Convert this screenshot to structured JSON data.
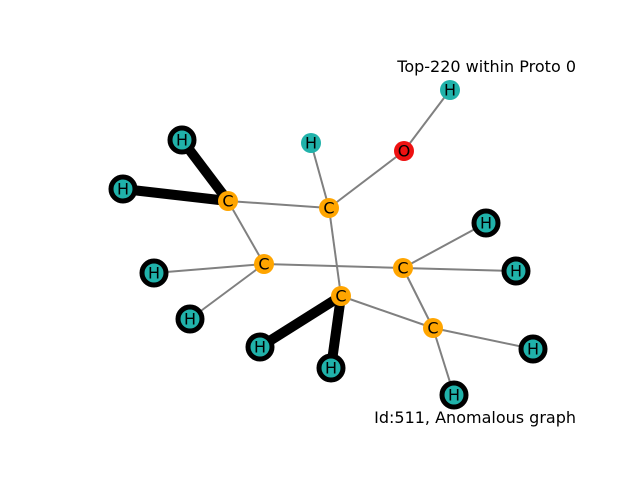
{
  "captions": {
    "top": "Top-220 within Proto 0",
    "bottom": "Id:511, Anomalous graph"
  },
  "colors": {
    "carbon": "#ffa500",
    "hydrogen": "#20b2aa",
    "oxygen": "#ee1111",
    "edge": "#808080",
    "highlight": "#000000"
  },
  "nodes": [
    {
      "id": "c1",
      "label": "C",
      "element": "carbon"
    },
    {
      "id": "c2",
      "label": "C",
      "element": "carbon"
    },
    {
      "id": "c3",
      "label": "C",
      "element": "carbon"
    },
    {
      "id": "c4",
      "label": "C",
      "element": "carbon"
    },
    {
      "id": "c5",
      "label": "C",
      "element": "carbon"
    },
    {
      "id": "c6",
      "label": "C",
      "element": "carbon"
    },
    {
      "id": "o1",
      "label": "O",
      "element": "oxygen"
    },
    {
      "id": "h1",
      "label": "H",
      "element": "hydrogen"
    },
    {
      "id": "h2",
      "label": "H",
      "element": "hydrogen"
    },
    {
      "id": "h3",
      "label": "H",
      "element": "hydrogen",
      "highlighted": true
    },
    {
      "id": "h4",
      "label": "H",
      "element": "hydrogen",
      "highlighted": true
    },
    {
      "id": "h5",
      "label": "H",
      "element": "hydrogen",
      "highlighted": true
    },
    {
      "id": "h6",
      "label": "H",
      "element": "hydrogen",
      "highlighted": true
    },
    {
      "id": "h7",
      "label": "H",
      "element": "hydrogen",
      "highlighted": true
    },
    {
      "id": "h8",
      "label": "H",
      "element": "hydrogen",
      "highlighted": true
    },
    {
      "id": "h9",
      "label": "H",
      "element": "hydrogen",
      "highlighted": true
    },
    {
      "id": "h10",
      "label": "H",
      "element": "hydrogen",
      "highlighted": true
    },
    {
      "id": "h11",
      "label": "H",
      "element": "hydrogen",
      "highlighted": true
    },
    {
      "id": "h12",
      "label": "H",
      "element": "hydrogen",
      "highlighted": true
    }
  ],
  "edges": [
    {
      "source": "o1",
      "target": "h1"
    },
    {
      "source": "o1",
      "target": "c2"
    },
    {
      "source": "h2",
      "target": "c2"
    },
    {
      "source": "c1",
      "target": "c2"
    },
    {
      "source": "c1",
      "target": "h3",
      "highlighted": true
    },
    {
      "source": "c1",
      "target": "h4",
      "highlighted": true
    },
    {
      "source": "c1",
      "target": "c3"
    },
    {
      "source": "c2",
      "target": "c5"
    },
    {
      "source": "c3",
      "target": "h5"
    },
    {
      "source": "c3",
      "target": "h6"
    },
    {
      "source": "c3",
      "target": "c4"
    },
    {
      "source": "c4",
      "target": "h7"
    },
    {
      "source": "c4",
      "target": "h8"
    },
    {
      "source": "c4",
      "target": "c6"
    },
    {
      "source": "c5",
      "target": "h9",
      "highlighted": true
    },
    {
      "source": "c5",
      "target": "h10",
      "highlighted": true
    },
    {
      "source": "c5",
      "target": "c6"
    },
    {
      "source": "c6",
      "target": "h11"
    },
    {
      "source": "c6",
      "target": "h12"
    }
  ]
}
